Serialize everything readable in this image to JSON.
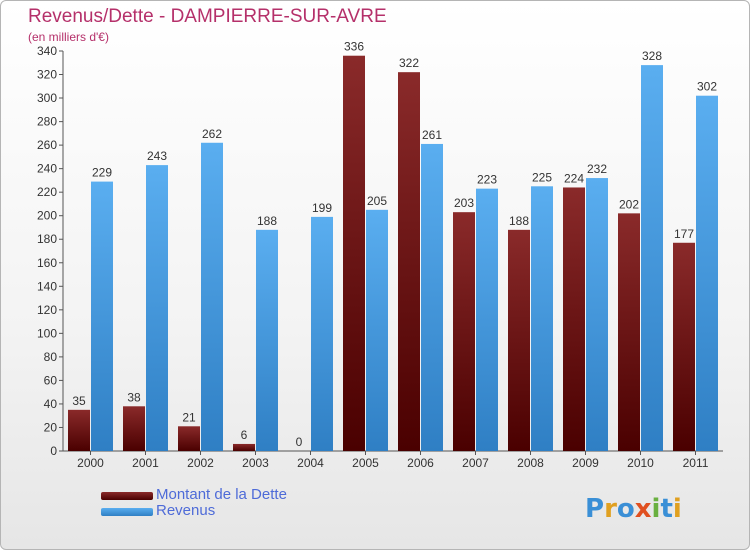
{
  "header": {
    "title": "Revenus/Dette - DAMPIERRE-SUR-AVRE",
    "subtitle": "(en milliers d'€)"
  },
  "logo": {
    "text": "Proxiti"
  },
  "colors": {
    "debt": "#6b1010",
    "revenue": "#4a9de0",
    "title": "#b5306a",
    "legend_text": "#4e6bd8"
  },
  "chart_data": {
    "type": "bar",
    "title": "Revenus/Dette - DAMPIERRE-SUR-AVRE",
    "subtitle": "(en milliers d'€)",
    "categories": [
      "2000",
      "2001",
      "2002",
      "2003",
      "2004",
      "2005",
      "2006",
      "2007",
      "2008",
      "2009",
      "2010",
      "2011"
    ],
    "series": [
      {
        "name": "Montant de la Dette",
        "values": [
          35,
          38,
          21,
          6,
          0,
          336,
          322,
          203,
          188,
          224,
          202,
          177
        ]
      },
      {
        "name": "Revenus",
        "values": [
          229,
          243,
          262,
          188,
          199,
          205,
          261,
          223,
          225,
          232,
          328,
          302
        ]
      }
    ],
    "ylim": [
      0,
      340
    ],
    "yticks": [
      0,
      20,
      40,
      60,
      80,
      100,
      120,
      140,
      160,
      180,
      200,
      220,
      240,
      260,
      280,
      300,
      320,
      340
    ],
    "grid": false,
    "legend": "bottom-left"
  }
}
